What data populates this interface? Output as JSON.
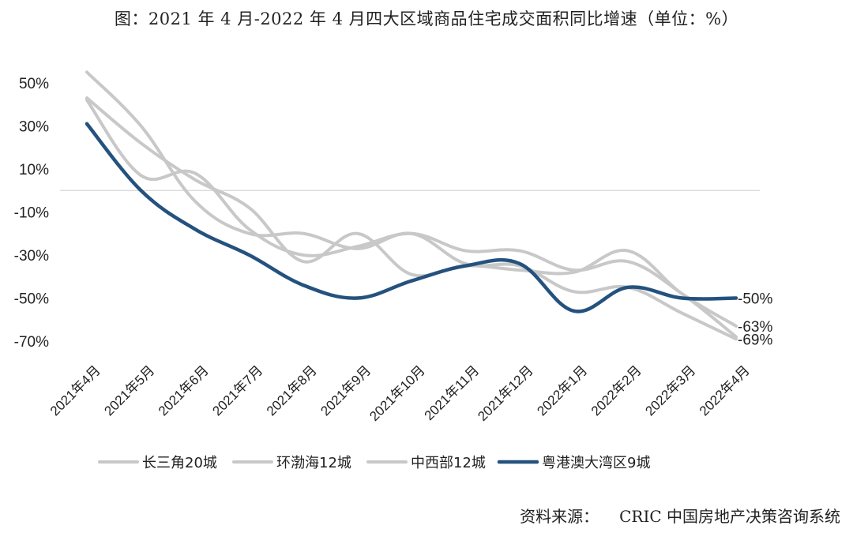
{
  "title": "图：2021 年 4 月-2022 年 4 月四大区域商品住宅成交面积同比增速（单位：%）",
  "source_label": "资料来源：",
  "source_text": "CRIC 中国房地产决策咨询系统",
  "chart_data": {
    "type": "line",
    "title": "图：2021 年 4 月-2022 年 4 月四大区域商品住宅成交面积同比增速（单位：%）",
    "xlabel": "",
    "ylabel": "",
    "ylim": [
      -70,
      50
    ],
    "ytick_values": [
      50,
      30,
      10,
      -10,
      -30,
      -50,
      -70
    ],
    "ytick_labels": [
      "50%",
      "30%",
      "10%",
      "-10%",
      "-30%",
      "-50%",
      "-70%"
    ],
    "categories": [
      "2021年4月",
      "2021年5月",
      "2021年6月",
      "2021年7月",
      "2021年8月",
      "2021年9月",
      "2021年10月",
      "2021年11月",
      "2021年12月",
      "2022年1月",
      "2022年2月",
      "2022年3月",
      "2022年4月"
    ],
    "legend_position": "bottom",
    "series": [
      {
        "name": "长三角20城",
        "color": "#c8c8c8",
        "values": [
          55,
          30,
          -5,
          -20,
          -20,
          -27,
          -20,
          -34,
          -35,
          -47,
          -45,
          -57,
          -69
        ],
        "end_label": "-69%"
      },
      {
        "name": "环渤海12城",
        "color": "#c8c8c8",
        "values": [
          43,
          22,
          5,
          -8,
          -33,
          -20,
          -39,
          -35,
          -37,
          -38,
          -28,
          -48,
          -63
        ],
        "end_label": "-63%"
      },
      {
        "name": "中西部12城",
        "color": "#c8c8c8",
        "values": [
          42,
          7,
          8,
          -18,
          -30,
          -26,
          -20,
          -28,
          -28,
          -37,
          -33,
          -48,
          -68
        ],
        "end_label": ""
      },
      {
        "name": "粤港澳大湾区9城",
        "color": "#24527f",
        "values": [
          31,
          0,
          -18,
          -30,
          -44,
          -50,
          -42,
          -35,
          -34,
          -56,
          -45,
          -50,
          -50
        ],
        "end_label": "-50%"
      }
    ]
  }
}
